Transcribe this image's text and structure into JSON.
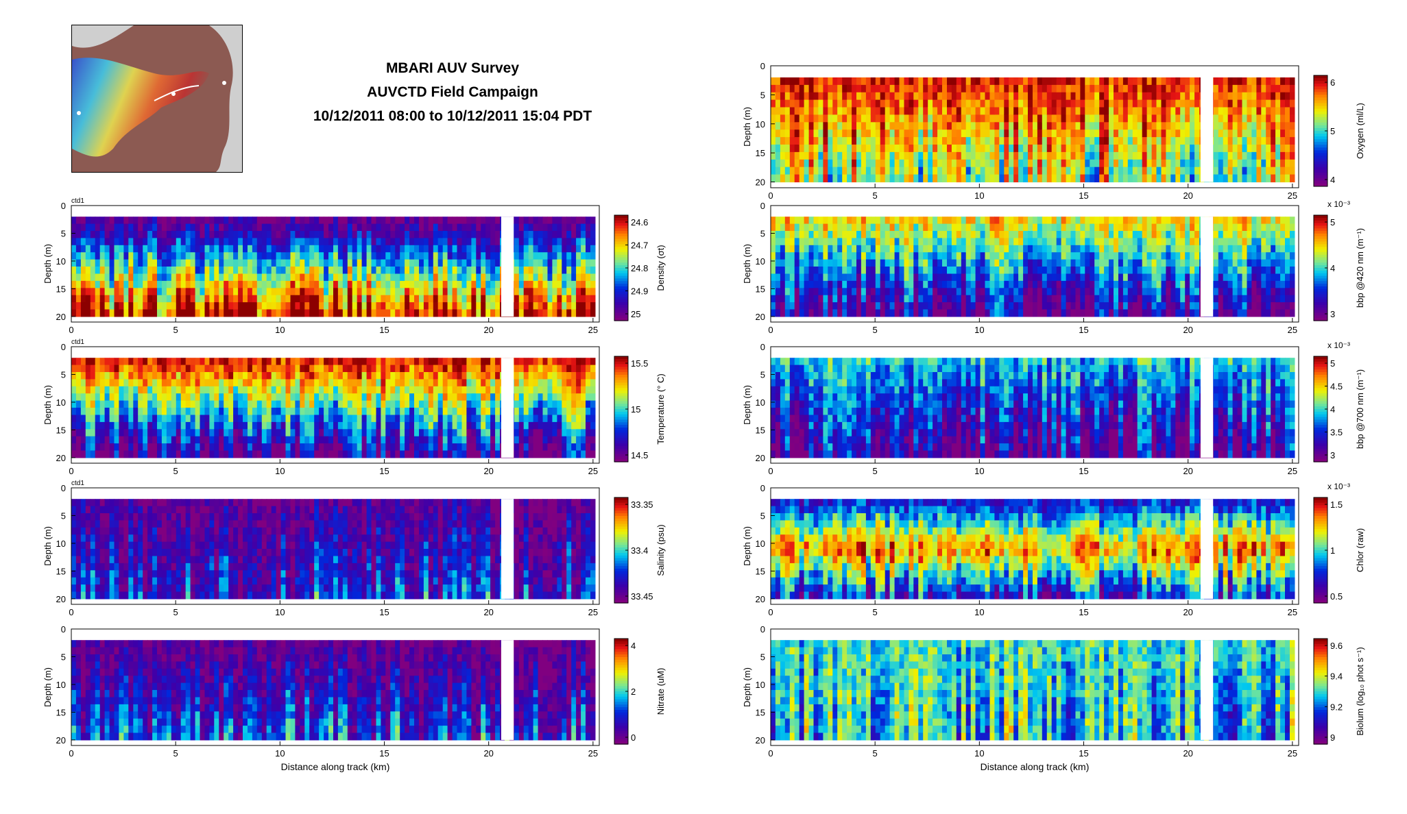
{
  "figure": {
    "title_lines": [
      "MBARI AUV Survey",
      "AUVCTD Field Campaign",
      "10/12/2011 08:00 to 10/12/2011 15:04 PDT"
    ]
  },
  "map_inset": {
    "icon": "bathymetry-map-icon",
    "land_color": "#8c5a52",
    "sea_color": "#cfcfcf"
  },
  "chart_data": [
    {
      "type": "heatmap",
      "panel_label": "ctd1",
      "ylabel": "Depth (m)",
      "xlabel": "",
      "x_range": [
        0,
        25.3
      ],
      "y_range": [
        0,
        21
      ],
      "x_ticks": [
        "0",
        "5",
        "10",
        "15",
        "20",
        "25"
      ],
      "y_ticks": [
        "0",
        "5",
        "10",
        "15",
        "20"
      ],
      "colorbar": {
        "label": "Density (σt)",
        "ticks": [
          "24.6",
          "24.7",
          "24.8",
          "24.9",
          "25"
        ],
        "reversed": true,
        "multiplier": ""
      }
    },
    {
      "type": "heatmap",
      "panel_label": "ctd1",
      "ylabel": "Depth (m)",
      "xlabel": "",
      "x_range": [
        0,
        25.3
      ],
      "y_range": [
        0,
        21
      ],
      "x_ticks": [
        "0",
        "5",
        "10",
        "15",
        "20",
        "25"
      ],
      "y_ticks": [
        "0",
        "5",
        "10",
        "15",
        "20"
      ],
      "colorbar": {
        "label": "Temperature (° C)",
        "ticks": [
          "15.5",
          "15",
          "14.5"
        ],
        "reversed": false,
        "multiplier": ""
      }
    },
    {
      "type": "heatmap",
      "panel_label": "ctd1",
      "ylabel": "Depth (m)",
      "xlabel": "",
      "x_range": [
        0,
        25.3
      ],
      "y_range": [
        0,
        21
      ],
      "x_ticks": [
        "0",
        "5",
        "10",
        "15",
        "20",
        "25"
      ],
      "y_ticks": [
        "0",
        "5",
        "10",
        "15",
        "20"
      ],
      "colorbar": {
        "label": "Salinity (psu)",
        "ticks": [
          "33.35",
          "33.4",
          "33.45"
        ],
        "reversed": true,
        "multiplier": ""
      }
    },
    {
      "type": "heatmap",
      "panel_label": "",
      "ylabel": "Depth (m)",
      "xlabel": "Distance along track (km)",
      "x_range": [
        0,
        25.3
      ],
      "y_range": [
        0,
        21
      ],
      "x_ticks": [
        "0",
        "5",
        "10",
        "15",
        "20",
        "25"
      ],
      "y_ticks": [
        "0",
        "5",
        "10",
        "15",
        "20"
      ],
      "colorbar": {
        "label": "Nitrate (uM)",
        "ticks": [
          "4",
          "2",
          "0"
        ],
        "reversed": false,
        "multiplier": ""
      }
    },
    {
      "type": "heatmap",
      "panel_label": "",
      "ylabel": "Depth (m)",
      "xlabel": "",
      "x_range": [
        0,
        25.3
      ],
      "y_range": [
        0,
        21
      ],
      "x_ticks": [
        "0",
        "5",
        "10",
        "15",
        "20",
        "25"
      ],
      "y_ticks": [
        "0",
        "5",
        "10",
        "15",
        "20"
      ],
      "colorbar": {
        "label": "Oxygen (ml/L)",
        "ticks": [
          "6",
          "5",
          "4"
        ],
        "reversed": false,
        "multiplier": ""
      }
    },
    {
      "type": "heatmap",
      "panel_label": "",
      "ylabel": "Depth (m)",
      "xlabel": "",
      "x_range": [
        0,
        25.3
      ],
      "y_range": [
        0,
        21
      ],
      "x_ticks": [
        "0",
        "5",
        "10",
        "15",
        "20",
        "25"
      ],
      "y_ticks": [
        "0",
        "5",
        "10",
        "15",
        "20"
      ],
      "colorbar": {
        "label": "bbp @420 nm (m⁻¹)",
        "ticks": [
          "5",
          "4",
          "3"
        ],
        "reversed": false,
        "multiplier": "x 10⁻³"
      }
    },
    {
      "type": "heatmap",
      "panel_label": "",
      "ylabel": "Depth (m)",
      "xlabel": "",
      "x_range": [
        0,
        25.3
      ],
      "y_range": [
        0,
        21
      ],
      "x_ticks": [
        "0",
        "5",
        "10",
        "15",
        "20",
        "25"
      ],
      "y_ticks": [
        "0",
        "5",
        "10",
        "15",
        "20"
      ],
      "colorbar": {
        "label": "bbp @700 nm (m⁻¹)",
        "ticks": [
          "5",
          "4.5",
          "4",
          "3.5",
          "3"
        ],
        "reversed": false,
        "multiplier": "x 10⁻³"
      }
    },
    {
      "type": "heatmap",
      "panel_label": "",
      "ylabel": "Depth (m)",
      "xlabel": "",
      "x_range": [
        0,
        25.3
      ],
      "y_range": [
        0,
        21
      ],
      "x_ticks": [
        "0",
        "5",
        "10",
        "15",
        "20",
        "25"
      ],
      "y_ticks": [
        "0",
        "5",
        "10",
        "15",
        "20"
      ],
      "colorbar": {
        "label": "Chlor (raw)",
        "ticks": [
          "1.5",
          "1",
          "0.5"
        ],
        "reversed": false,
        "multiplier": "x 10⁻³"
      }
    },
    {
      "type": "heatmap",
      "panel_label": "",
      "ylabel": "Depth (m)",
      "xlabel": "Distance along track (km)",
      "x_range": [
        0,
        25.3
      ],
      "y_range": [
        0,
        21
      ],
      "x_ticks": [
        "0",
        "5",
        "10",
        "15",
        "20",
        "25"
      ],
      "y_ticks": [
        "0",
        "5",
        "10",
        "15",
        "20"
      ],
      "colorbar": {
        "label": "Biolum (log₁₀ phot s⁻¹)",
        "ticks": [
          "9.6",
          "9.4",
          "9.2",
          "9"
        ],
        "reversed": false,
        "multiplier": ""
      }
    }
  ]
}
